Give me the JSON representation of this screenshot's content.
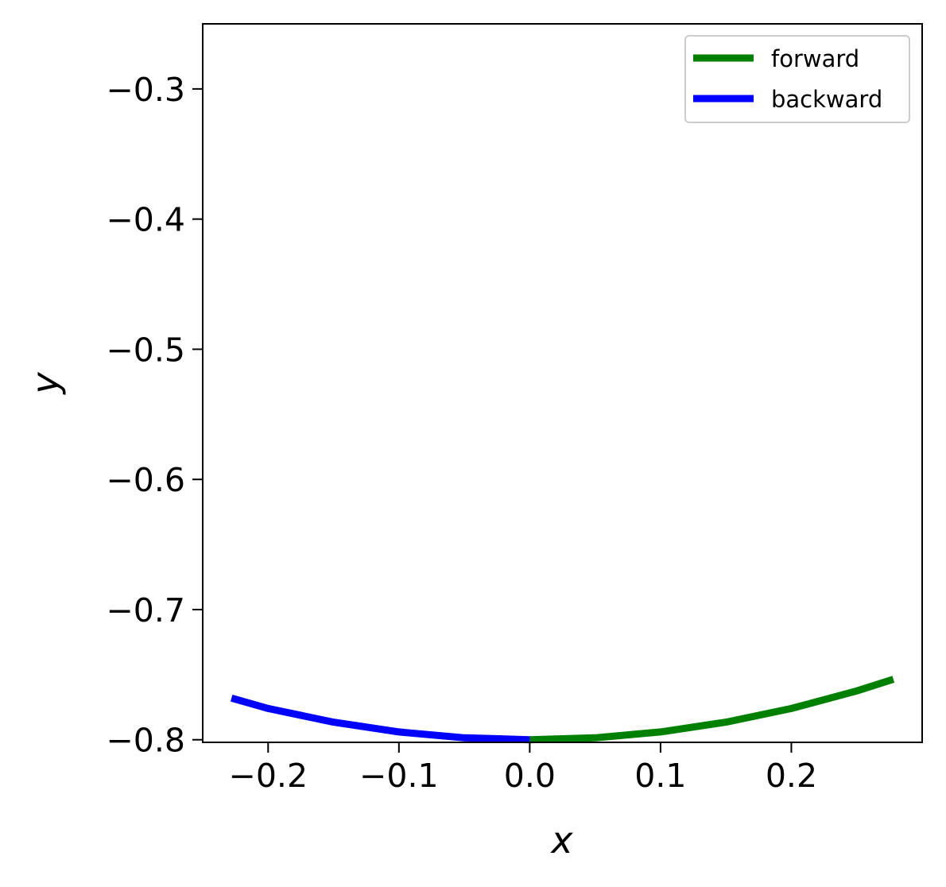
{
  "chart_data": {
    "type": "line",
    "title": "",
    "xlabel": "x",
    "ylabel": "y",
    "xlim": [
      -0.25,
      0.3
    ],
    "ylim": [
      -0.802,
      -0.25
    ],
    "grid": false,
    "legend_position": "top-right",
    "x_ticks": [
      -0.2,
      -0.1,
      0.0,
      0.1,
      0.2
    ],
    "x_tick_labels": [
      "−0.2",
      "−0.1",
      "0.0",
      "0.1",
      "0.2"
    ],
    "y_ticks": [
      -0.3,
      -0.4,
      -0.5,
      -0.6,
      -0.7,
      -0.8
    ],
    "y_tick_labels": [
      "−0.3",
      "−0.4",
      "−0.5",
      "−0.6",
      "−0.7",
      "−0.8"
    ],
    "series": [
      {
        "name": "forward",
        "color": "#008000",
        "x": [
          0.0,
          0.05,
          0.1,
          0.15,
          0.2,
          0.25,
          0.278
        ],
        "y": [
          -0.8,
          -0.7985,
          -0.794,
          -0.7865,
          -0.776,
          -0.7625,
          -0.7535
        ]
      },
      {
        "name": "backward",
        "color": "#0000ff",
        "x": [
          0.0,
          -0.05,
          -0.1,
          -0.15,
          -0.2,
          -0.228
        ],
        "y": [
          -0.8,
          -0.7985,
          -0.794,
          -0.7865,
          -0.776,
          -0.768
        ]
      }
    ]
  }
}
